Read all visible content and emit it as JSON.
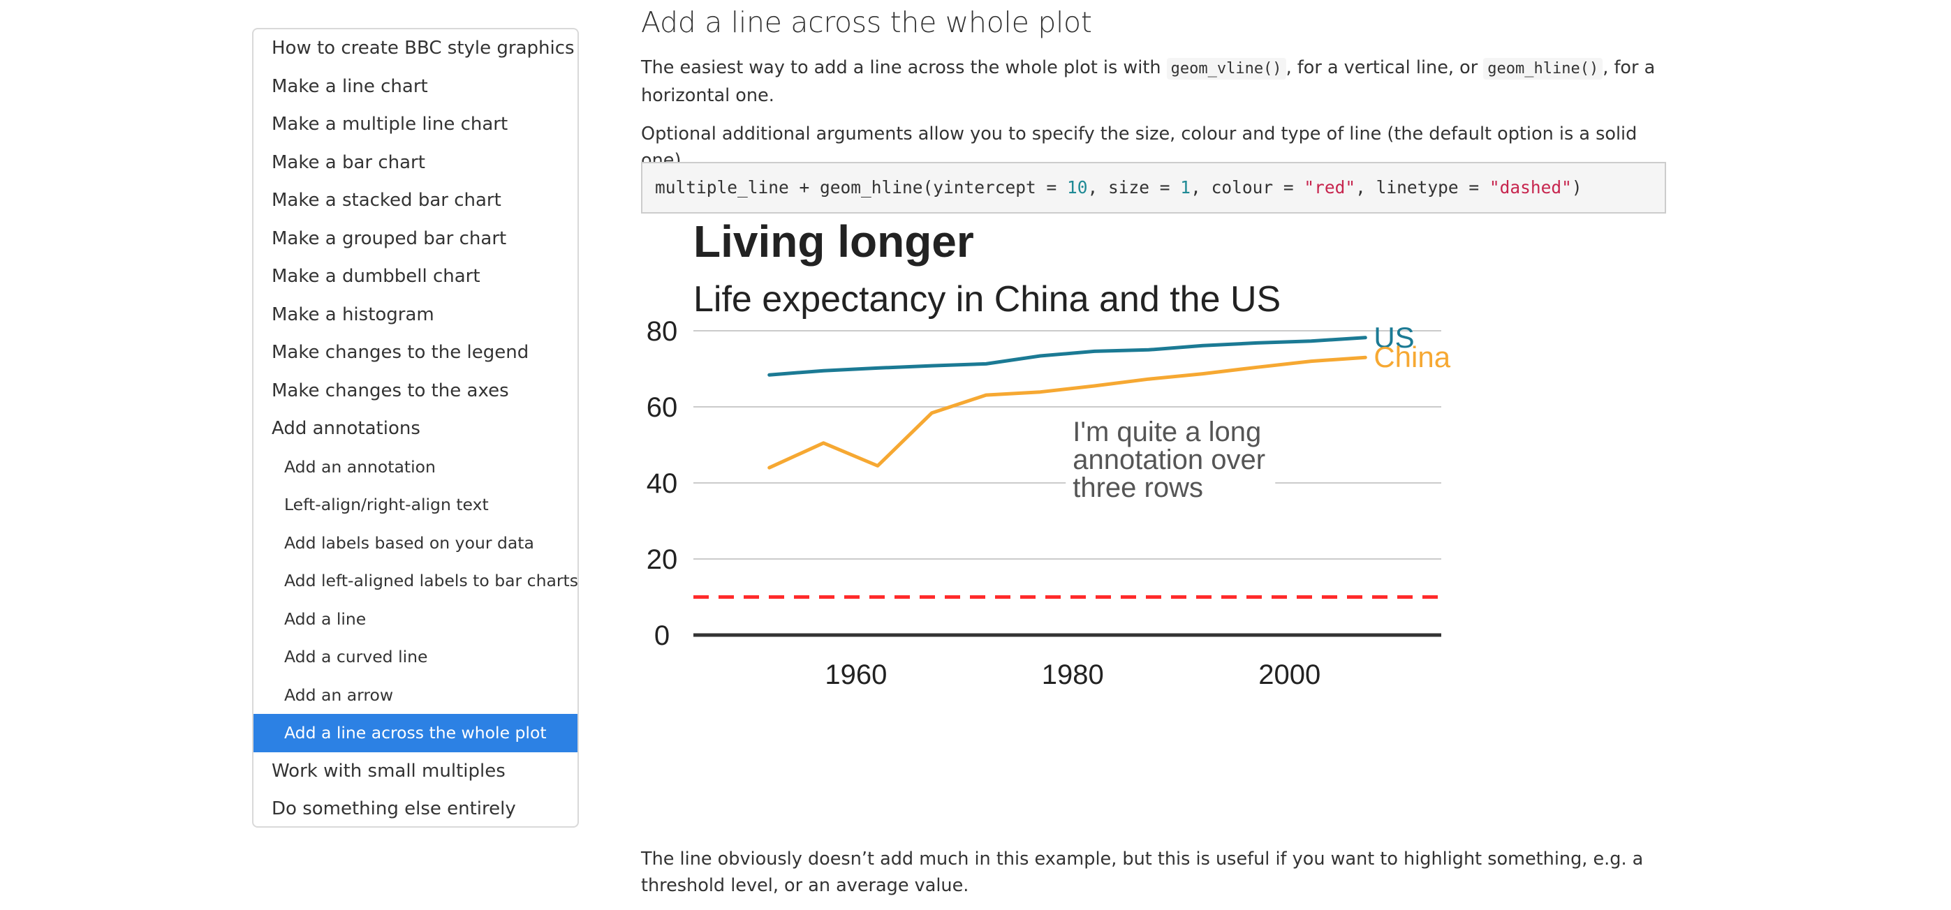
{
  "toc": {
    "items": [
      {
        "label": "How to create BBC style graphics",
        "level": 1,
        "active": false
      },
      {
        "label": "Make a line chart",
        "level": 1,
        "active": false
      },
      {
        "label": "Make a multiple line chart",
        "level": 1,
        "active": false
      },
      {
        "label": "Make a bar chart",
        "level": 1,
        "active": false
      },
      {
        "label": "Make a stacked bar chart",
        "level": 1,
        "active": false
      },
      {
        "label": "Make a grouped bar chart",
        "level": 1,
        "active": false
      },
      {
        "label": "Make a dumbbell chart",
        "level": 1,
        "active": false
      },
      {
        "label": "Make a histogram",
        "level": 1,
        "active": false
      },
      {
        "label": "Make changes to the legend",
        "level": 1,
        "active": false
      },
      {
        "label": "Make changes to the axes",
        "level": 1,
        "active": false
      },
      {
        "label": "Add annotations",
        "level": 1,
        "active": false
      },
      {
        "label": "Add an annotation",
        "level": 2,
        "active": false
      },
      {
        "label": "Left-align/right-align text",
        "level": 2,
        "active": false
      },
      {
        "label": "Add labels based on your data",
        "level": 2,
        "active": false
      },
      {
        "label": "Add left-aligned labels to bar charts",
        "level": 2,
        "active": false
      },
      {
        "label": "Add a line",
        "level": 2,
        "active": false
      },
      {
        "label": "Add a curved line",
        "level": 2,
        "active": false
      },
      {
        "label": "Add an arrow",
        "level": 2,
        "active": false
      },
      {
        "label": "Add a line across the whole plot",
        "level": 2,
        "active": true
      },
      {
        "label": "Work with small multiples",
        "level": 1,
        "active": false
      },
      {
        "label": "Do something else entirely",
        "level": 1,
        "active": false
      }
    ],
    "active_color": "#2c81e4"
  },
  "content": {
    "section_title": "Add a line across the whole plot",
    "p1": {
      "t1": "The easiest way to add a line across the whole plot is with ",
      "code1": "geom_vline()",
      "t2": ", for a vertical line, or ",
      "code2": "geom_hline()",
      "t3": ", for a horizontal one."
    },
    "p2": "Optional additional arguments allow you to specify the size, colour and type of line (the default option is a solid one).",
    "code": {
      "c1": "multiple_line + geom_hline(yintercept = ",
      "n1": "10",
      "c2": ", size = ",
      "n2": "1",
      "c3": ", colour = ",
      "s1": "\"red\"",
      "c4": ", linetype = ",
      "s2": "\"dashed\"",
      "c5": ")"
    },
    "p3": "The line obviously doesn’t add much in this example, but this is useful if you want to highlight something, e.g. a threshold level, or an average value."
  },
  "chart_data": {
    "type": "line",
    "title": "Living longer",
    "subtitle": "Life expectancy in China and the US",
    "xlabel": "",
    "ylabel": "",
    "xlim": [
      1945,
      2014
    ],
    "ylim": [
      0,
      80
    ],
    "x_ticks": [
      1960,
      1980,
      2000
    ],
    "y_ticks": [
      0,
      20,
      40,
      60,
      80
    ],
    "grid": "horizontal",
    "legend": "direct labels at line ends (right)",
    "hline": {
      "y": 10,
      "color": "#ff2b2b",
      "linetype": "dashed"
    },
    "annotation": {
      "lines": [
        "I'm quite a long",
        "annotation over",
        "three rows"
      ],
      "x": 1980,
      "y": 40
    },
    "series": [
      {
        "name": "US",
        "color": "#1b7a94",
        "x": [
          1952,
          1957,
          1962,
          1967,
          1972,
          1977,
          1982,
          1987,
          1992,
          1997,
          2002,
          2007
        ],
        "values": [
          68.4,
          69.5,
          70.2,
          70.8,
          71.3,
          73.4,
          74.6,
          75.0,
          76.1,
          76.8,
          77.3,
          78.2
        ]
      },
      {
        "name": "China",
        "color": "#f6a832",
        "x": [
          1952,
          1957,
          1962,
          1967,
          1972,
          1977,
          1982,
          1987,
          1992,
          1997,
          2002,
          2007
        ],
        "values": [
          44.0,
          50.5,
          44.5,
          58.4,
          63.1,
          63.9,
          65.5,
          67.3,
          68.7,
          70.4,
          72.0,
          73.0
        ]
      }
    ]
  }
}
